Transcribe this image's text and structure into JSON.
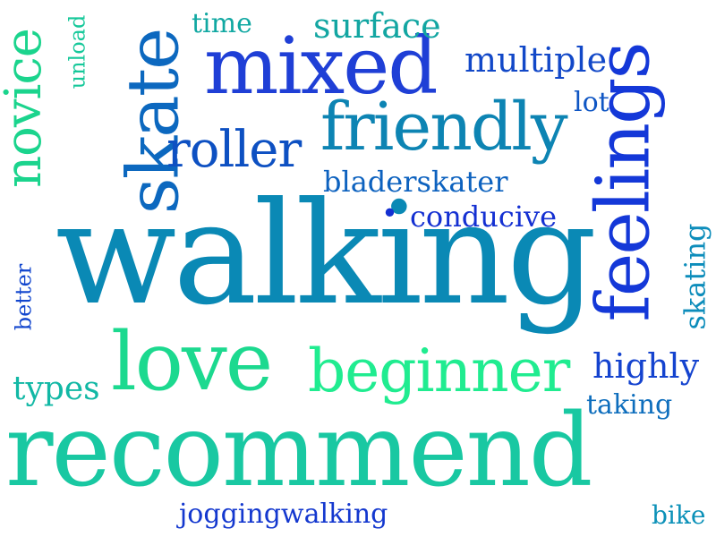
{
  "words": {
    "walking": {
      "text": "walking",
      "color": "#0a89b5"
    },
    "recommend": {
      "text": "recommend",
      "color": "#19c8a2"
    },
    "love": {
      "text": "love",
      "color": "#1cd98f"
    },
    "beginner": {
      "text": "beginner",
      "color": "#20ec90"
    },
    "mixed": {
      "text": "mixed",
      "color": "#1f3fd6"
    },
    "friendly": {
      "text": "friendly",
      "color": "#0d84b3"
    },
    "feelings": {
      "text": "feelings",
      "color": "#1438d8"
    },
    "skate": {
      "text": "skate",
      "color": "#0c68bf"
    },
    "novice": {
      "text": "novice",
      "color": "#1bd48d"
    },
    "roller": {
      "text": "roller",
      "color": "#0d50c2"
    },
    "multiple": {
      "text": "multiple",
      "color": "#1248c8"
    },
    "surface": {
      "text": "surface",
      "color": "#13a6a2"
    },
    "bladerskater": {
      "text": "bladerskater",
      "color": "#0d62bf"
    },
    "conducive": {
      "text": "conducive",
      "color": "#1430d2"
    },
    "highly": {
      "text": "highly",
      "color": "#1443cf"
    },
    "taking": {
      "text": "taking",
      "color": "#0e6ebd"
    },
    "skating": {
      "text": "skating",
      "color": "#0d8dbb"
    },
    "types": {
      "text": "types",
      "color": "#12b8a5"
    },
    "better": {
      "text": "better",
      "color": "#1246ce"
    },
    "time": {
      "text": "time",
      "color": "#11a8a2"
    },
    "unload": {
      "text": "unload",
      "color": "#16c89a"
    },
    "lot": {
      "text": "lot",
      "color": "#0f56c4"
    },
    "joggingwalking": {
      "text": "joggingwalking",
      "color": "#1438cf"
    },
    "bike": {
      "text": "bike",
      "color": "#0c91b8"
    },
    "dot": {
      "text": ".",
      "color": "#1430d2"
    }
  }
}
